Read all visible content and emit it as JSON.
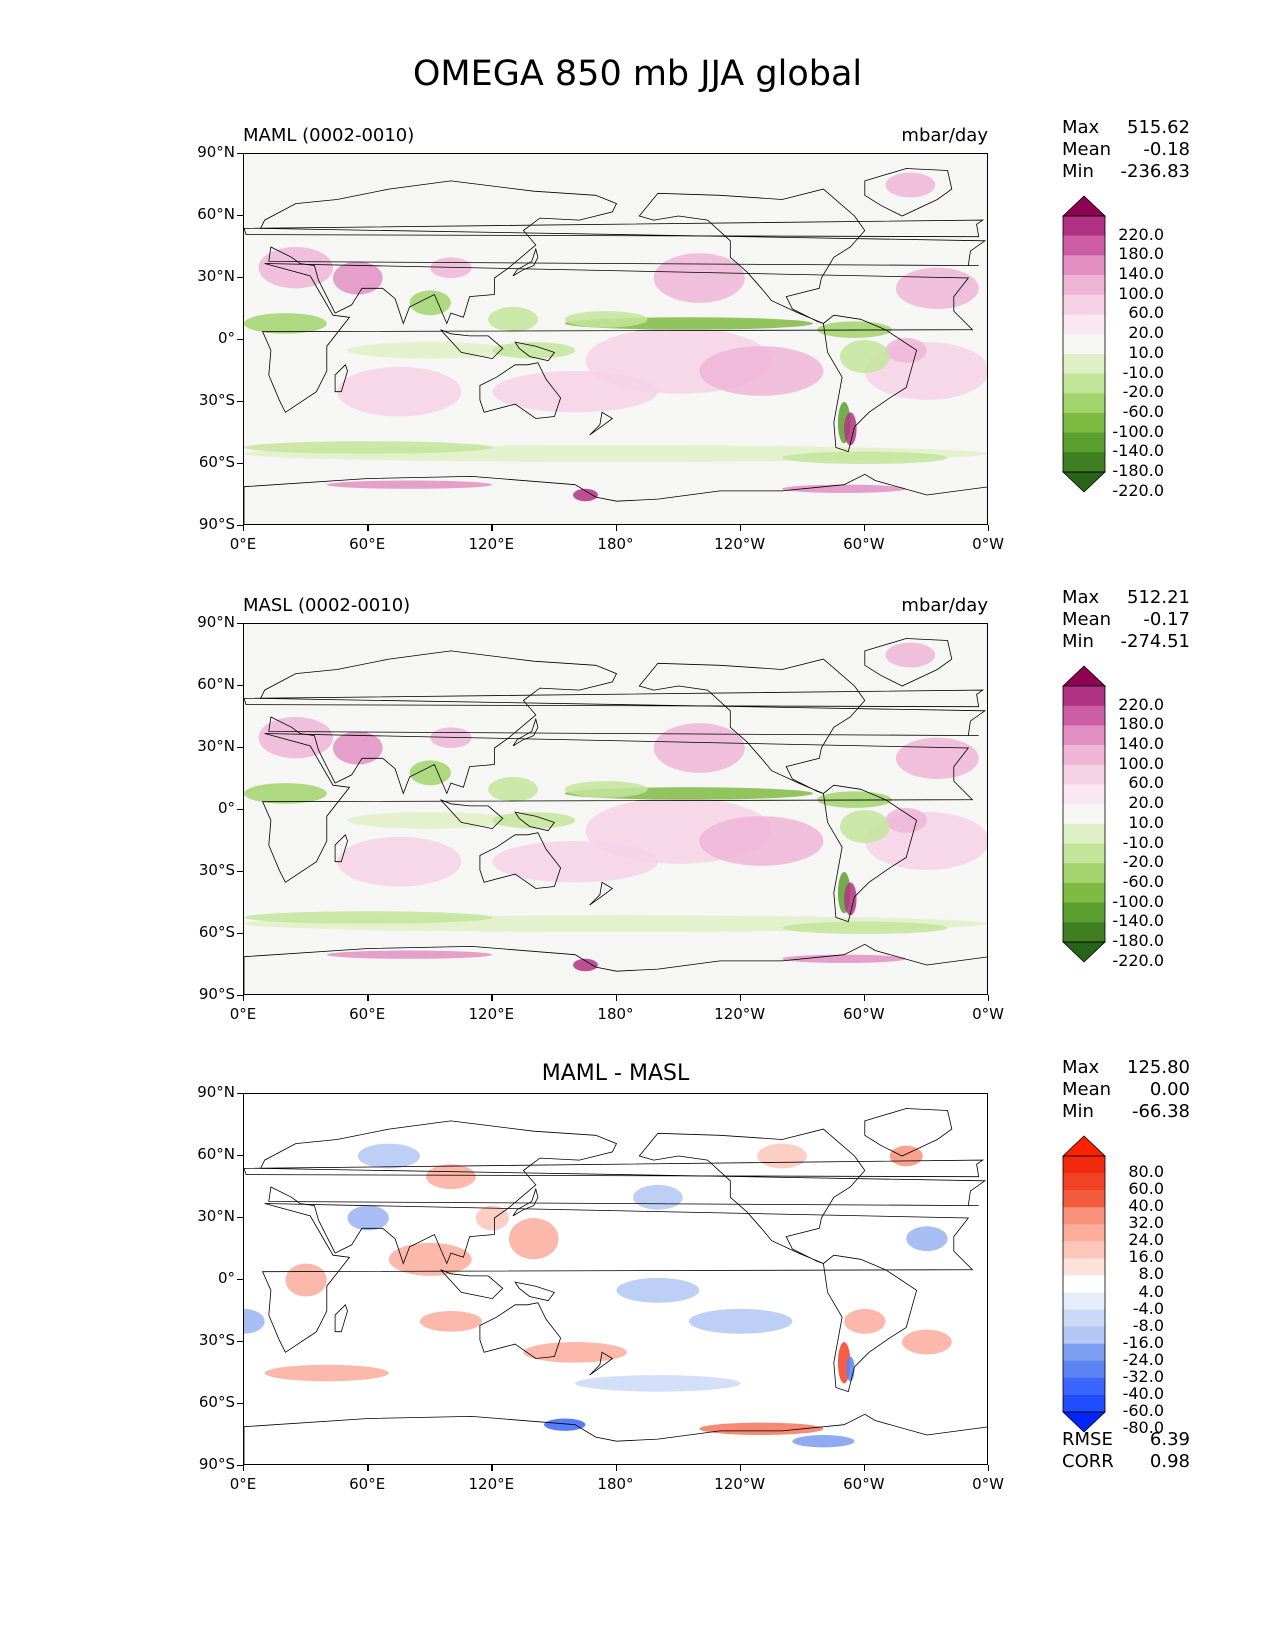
{
  "title": "OMEGA 850 mb JJA global",
  "colors": {
    "omega_scale": [
      "#276419",
      "#3f7f22",
      "#5a9f2f",
      "#7fbb42",
      "#a2d36c",
      "#c3e59a",
      "#dff0c6",
      "#f6f6f5",
      "#fbe7f1",
      "#f6d2e6",
      "#efb5d7",
      "#e18fc3",
      "#cd5ea5",
      "#b13283",
      "#8e0152"
    ],
    "diff_scale": [
      "#0026ff",
      "#1f4dff",
      "#3a66ff",
      "#5b83f4",
      "#7b9ef0",
      "#99b3f2",
      "#b3c7f5",
      "#cbd9f8",
      "#e5edfb",
      "#ffffff",
      "#fde2dc",
      "#fcc7bb",
      "#fbac9b",
      "#f9917b",
      "#f6765c",
      "#f45c40",
      "#f24226",
      "#f12a0e",
      "#ff2200"
    ],
    "land_outline": "#000000"
  },
  "axes": {
    "y_ticks": [
      "90°N",
      "60°N",
      "30°N",
      "0°",
      "30°S",
      "60°S",
      "90°S"
    ],
    "x_ticks": [
      "0°E",
      "60°E",
      "120°E",
      "180°",
      "120°W",
      "60°W",
      "0°W"
    ]
  },
  "chart_data": [
    {
      "type": "heatmap",
      "title": "MAML (0002-0010)",
      "units": "mbar/day",
      "stats": {
        "max_label": "Max",
        "max": "515.62",
        "mean_label": "Mean",
        "mean": "-0.18",
        "min_label": "Min",
        "min": "-236.83"
      },
      "colorbar_levels": [
        "220.0",
        "180.0",
        "140.0",
        "100.0",
        "60.0",
        "20.0",
        "10.0",
        "-10.0",
        "-20.0",
        "-60.0",
        "-100.0",
        "-140.0",
        "-180.0",
        "-220.0"
      ],
      "x_range": [
        0,
        360
      ],
      "y_range": [
        -90,
        90
      ]
    },
    {
      "type": "heatmap",
      "title": "MASL (0002-0010)",
      "units": "mbar/day",
      "stats": {
        "max_label": "Max",
        "max": "512.21",
        "mean_label": "Mean",
        "mean": "-0.17",
        "min_label": "Min",
        "min": "-274.51"
      },
      "colorbar_levels": [
        "220.0",
        "180.0",
        "140.0",
        "100.0",
        "60.0",
        "20.0",
        "10.0",
        "-10.0",
        "-20.0",
        "-60.0",
        "-100.0",
        "-140.0",
        "-180.0",
        "-220.0"
      ],
      "x_range": [
        0,
        360
      ],
      "y_range": [
        -90,
        90
      ]
    },
    {
      "type": "heatmap",
      "title": "MAML - MASL",
      "units": "",
      "stats": {
        "max_label": "Max",
        "max": "125.80",
        "mean_label": "Mean",
        "mean": "0.00",
        "min_label": "Min",
        "min": "-66.38"
      },
      "colorbar_levels": [
        "80.0",
        "60.0",
        "40.0",
        "32.0",
        "24.0",
        "16.0",
        "8.0",
        "4.0",
        "-4.0",
        "-8.0",
        "-16.0",
        "-24.0",
        "-32.0",
        "-40.0",
        "-60.0",
        "-80.0"
      ],
      "metrics": {
        "rmse_label": "RMSE",
        "rmse": "6.39",
        "corr_label": "CORR",
        "corr": "0.98"
      },
      "x_range": [
        0,
        360
      ],
      "y_range": [
        -90,
        90
      ]
    }
  ]
}
